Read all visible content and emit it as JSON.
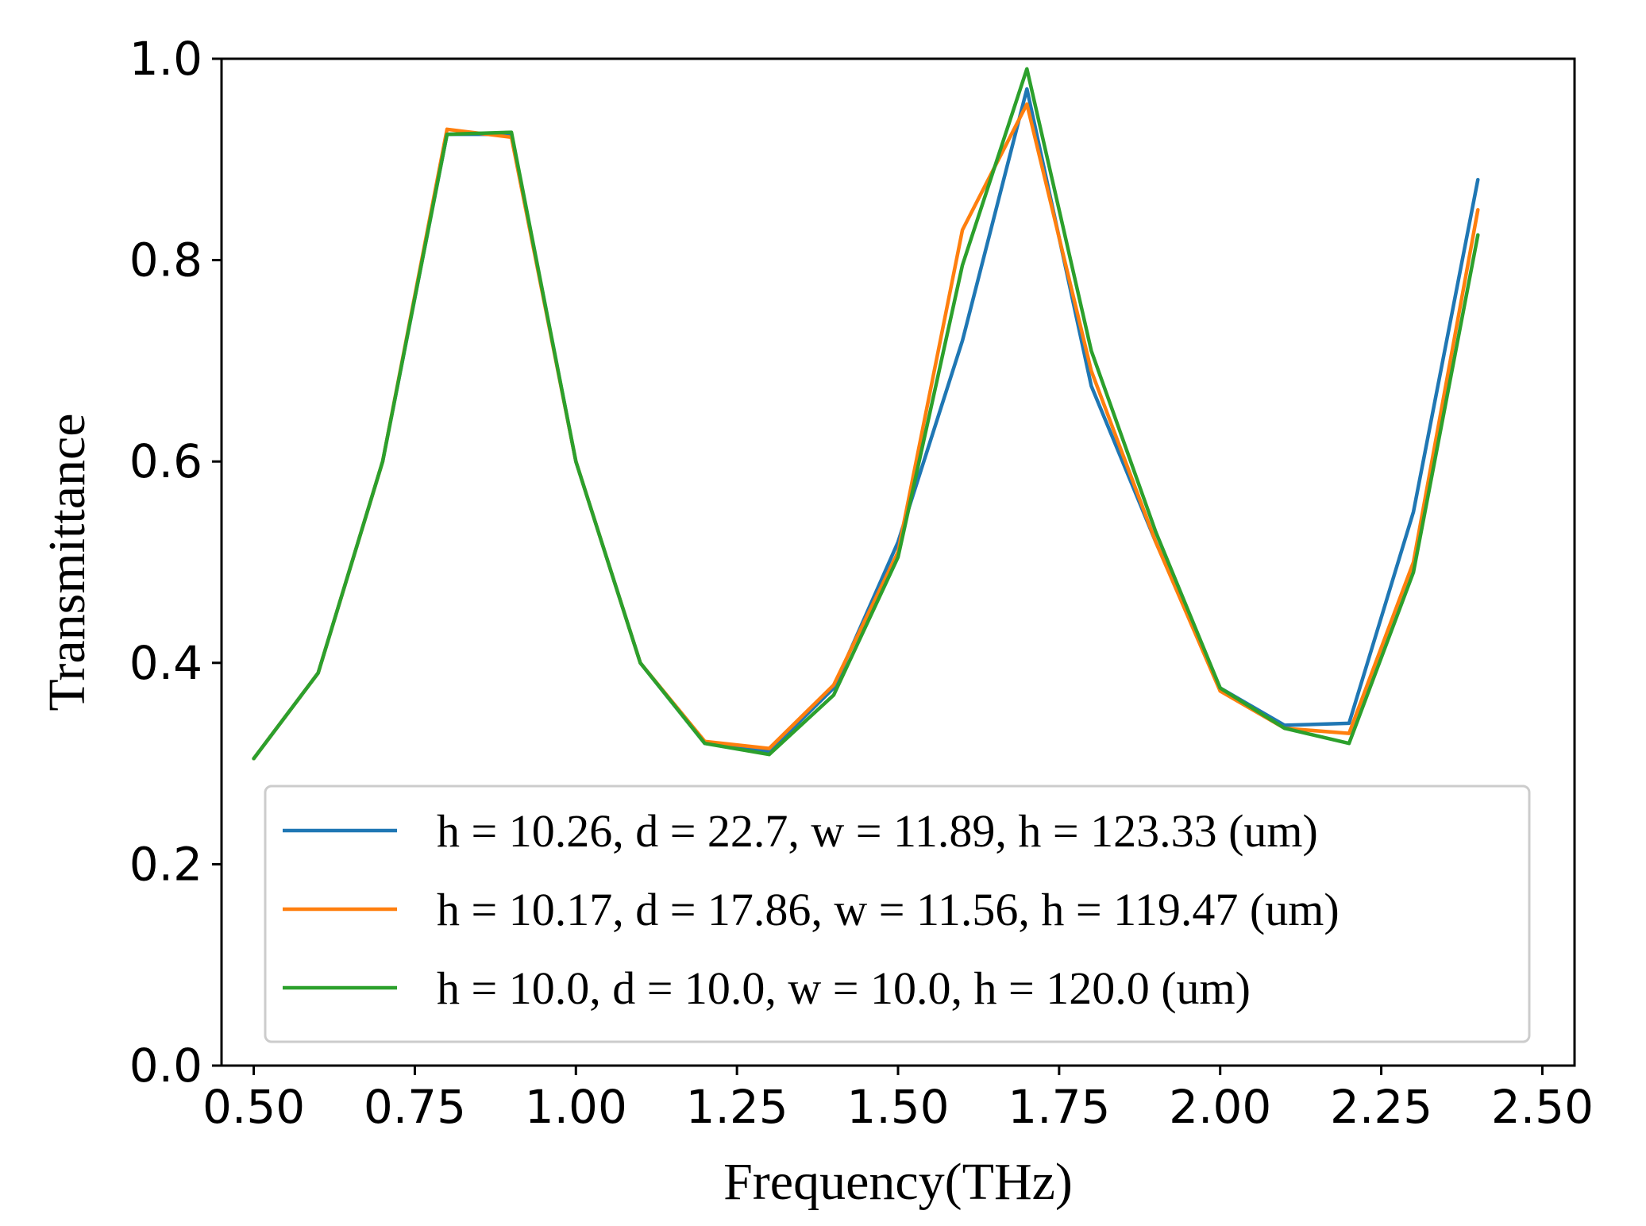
{
  "chart_data": {
    "type": "line",
    "xlabel": "Frequency(THz)",
    "ylabel": "Transmittance",
    "xlim": [
      0.45,
      2.55
    ],
    "ylim": [
      0.0,
      1.0
    ],
    "xticks": [
      "0.50",
      "0.75",
      "1.00",
      "1.25",
      "1.50",
      "1.75",
      "2.00",
      "2.25",
      "2.50"
    ],
    "yticks": [
      "0.0",
      "0.2",
      "0.4",
      "0.6",
      "0.8",
      "1.0"
    ],
    "grid": false,
    "legend_position": "lower center",
    "x": [
      0.5,
      0.6,
      0.7,
      0.8,
      0.9,
      1.0,
      1.1,
      1.2,
      1.3,
      1.4,
      1.5,
      1.6,
      1.7,
      1.8,
      1.9,
      2.0,
      2.1,
      2.2,
      2.3,
      2.4
    ],
    "series": [
      {
        "name": "h = 10.26, d = 22.7, w = 11.89, h = 123.33 (um)",
        "color": "#1f77b4",
        "values": [
          0.305,
          0.39,
          0.6,
          0.925,
          0.925,
          0.6,
          0.4,
          0.32,
          0.312,
          0.375,
          0.52,
          0.72,
          0.97,
          0.675,
          0.52,
          0.375,
          0.338,
          0.34,
          0.55,
          0.88
        ]
      },
      {
        "name": "h = 10.17, d = 17.86, w = 11.56, h = 119.47 (um)",
        "color": "#ff7f0e",
        "values": [
          0.305,
          0.39,
          0.6,
          0.93,
          0.922,
          0.6,
          0.4,
          0.322,
          0.315,
          0.378,
          0.51,
          0.83,
          0.955,
          0.69,
          0.52,
          0.372,
          0.335,
          0.33,
          0.5,
          0.85
        ]
      },
      {
        "name": "h = 10.0, d = 10.0, w = 10.0, h = 120.0 (um)",
        "color": "#2ca02c",
        "values": [
          0.305,
          0.39,
          0.6,
          0.925,
          0.927,
          0.6,
          0.4,
          0.32,
          0.309,
          0.368,
          0.505,
          0.795,
          0.99,
          0.71,
          0.53,
          0.375,
          0.335,
          0.32,
          0.49,
          0.825
        ]
      }
    ]
  }
}
